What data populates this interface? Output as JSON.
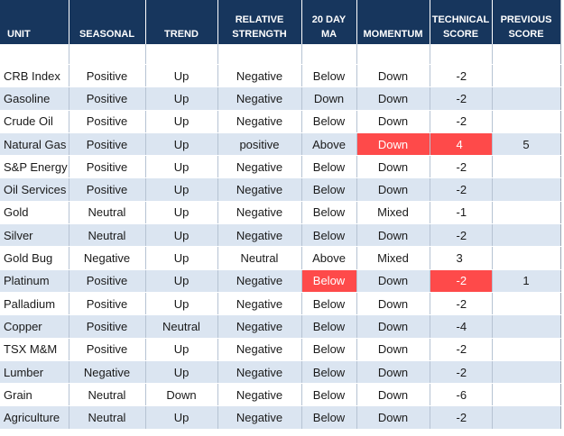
{
  "headers": [
    "UNIT",
    "SEASONAL",
    "TREND",
    "RELATIVE STRENGTH",
    "20 DAY MA",
    "MOMENTUM",
    "TECHNICAL SCORE",
    "PREVIOUS SCORE"
  ],
  "highlight_color": "#fe4a4a",
  "header_bg": "#17365d",
  "alt_row_bg": "#dbe5f1",
  "rows": [
    {
      "unit": "CRB Index",
      "seasonal": "Positive",
      "trend": "Up",
      "rs": "Negative",
      "ma": "Below",
      "momentum": "Down",
      "score": "-2",
      "prev": ""
    },
    {
      "unit": "Gasoline",
      "seasonal": "Positive",
      "trend": "Up",
      "rs": "Negative",
      "ma": "Down",
      "momentum": "Down",
      "score": "-2",
      "prev": ""
    },
    {
      "unit": "Crude Oil",
      "seasonal": "Positive",
      "trend": "Up",
      "rs": "Negative",
      "ma": "Below",
      "momentum": "Down",
      "score": "-2",
      "prev": ""
    },
    {
      "unit": "Natural Gas",
      "seasonal": "Positive",
      "trend": "Up",
      "rs": "positive",
      "ma": "Above",
      "momentum": "Down",
      "score": "4",
      "prev": "5",
      "hl": [
        "momentum",
        "score"
      ]
    },
    {
      "unit": "S&P Energy",
      "seasonal": "Positive",
      "trend": "Up",
      "rs": "Negative",
      "ma": "Below",
      "momentum": "Down",
      "score": "-2",
      "prev": ""
    },
    {
      "unit": "Oil Services",
      "seasonal": "Positive",
      "trend": "Up",
      "rs": "Negative",
      "ma": "Below",
      "momentum": "Down",
      "score": "-2",
      "prev": ""
    },
    {
      "unit": "Gold",
      "seasonal": "Neutral",
      "trend": "Up",
      "rs": "Negative",
      "ma": "Below",
      "momentum": "Mixed",
      "score": "-1",
      "prev": ""
    },
    {
      "unit": "Silver",
      "seasonal": "Neutral",
      "trend": "Up",
      "rs": "Negative",
      "ma": "Below",
      "momentum": "Down",
      "score": "-2",
      "prev": ""
    },
    {
      "unit": "Gold Bug",
      "seasonal": "Negative",
      "trend": "Up",
      "rs": "Neutral",
      "ma": "Above",
      "momentum": "Mixed",
      "score": "3",
      "prev": ""
    },
    {
      "unit": "Platinum",
      "seasonal": "Positive",
      "trend": "Up",
      "rs": "Negative",
      "ma": "Below",
      "momentum": "Down",
      "score": "-2",
      "prev": "1",
      "hl": [
        "ma",
        "score"
      ]
    },
    {
      "unit": "Palladium",
      "seasonal": "Positive",
      "trend": "Up",
      "rs": "Negative",
      "ma": "Below",
      "momentum": "Down",
      "score": "-2",
      "prev": ""
    },
    {
      "unit": "Copper",
      "seasonal": "Positive",
      "trend": "Neutral",
      "rs": "Negative",
      "ma": "Below",
      "momentum": "Down",
      "score": "-4",
      "prev": ""
    },
    {
      "unit": "TSX M&M",
      "seasonal": "Positive",
      "trend": "Up",
      "rs": "Negative",
      "ma": "Below",
      "momentum": "Down",
      "score": "-2",
      "prev": ""
    },
    {
      "unit": "Lumber",
      "seasonal": "Negative",
      "trend": "Up",
      "rs": "Negative",
      "ma": "Below",
      "momentum": "Down",
      "score": "-2",
      "prev": ""
    },
    {
      "unit": "Grain",
      "seasonal": "Neutral",
      "trend": "Down",
      "rs": "Negative",
      "ma": "Below",
      "momentum": "Down",
      "score": "-6",
      "prev": ""
    },
    {
      "unit": "Agriculture",
      "seasonal": "Neutral",
      "trend": "Up",
      "rs": "Negative",
      "ma": "Below",
      "momentum": "Down",
      "score": "-2",
      "prev": ""
    }
  ]
}
